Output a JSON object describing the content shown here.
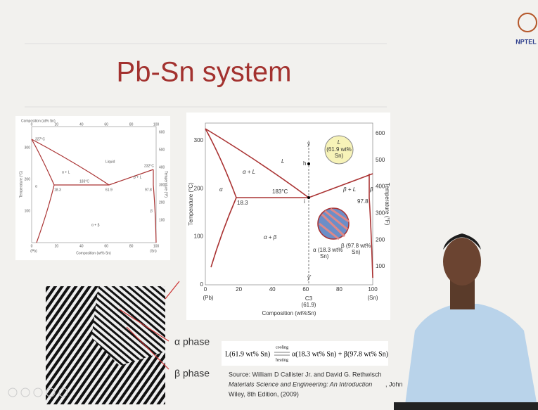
{
  "header": {
    "title": "Pb-Sn system",
    "logo": "NPTEL"
  },
  "small_diagram": {
    "top_axis_label": "Composition (at% Sn)",
    "top_ticks": [
      "0",
      "20",
      "40",
      "60",
      "80",
      "100"
    ],
    "left_ticks": [
      "300",
      "200",
      "100"
    ],
    "right_ticks": [
      "600",
      "500",
      "400",
      "300",
      "200",
      "100"
    ],
    "bottom_ticks": [
      "0",
      "20",
      "40",
      "60",
      "80",
      "100"
    ],
    "end_labels": [
      "(Pb)",
      "(Sn)"
    ],
    "x_axis_label": "Composition (wt% Sn)",
    "y_axis_label": "Temperature (°C)",
    "y2_axis_label": "Temperature (°F)",
    "labels": {
      "pb_melt": "327°C",
      "alpha_l": "α + L",
      "liquid": "Liquid",
      "sn_melt": "232°C",
      "beta_l": "β + L",
      "eutectic": "183°C",
      "alpha_comp": "18.3",
      "eut_comp": "61.9",
      "beta_comp": "97.8",
      "alpha_beta": "α + β",
      "alpha": "α",
      "beta": "β"
    }
  },
  "big_diagram": {
    "left_ticks": [
      "300",
      "200",
      "100",
      "0"
    ],
    "right_ticks": [
      "600",
      "500",
      "400",
      "300",
      "200",
      "100"
    ],
    "bottom_ticks": [
      "0",
      "20",
      "40",
      "60",
      "80",
      "100"
    ],
    "end_labels": [
      "(Pb)",
      "(Sn)"
    ],
    "x_axis_label": "Composition (wt%Sn)",
    "y_axis_label": "Temperature (°C)",
    "y2_axis_label": "Temperature (°F)",
    "labels": {
      "liquid": "L",
      "alpha_l": "α + L",
      "beta_l": "β + L",
      "alpha": "α",
      "beta": "β",
      "eutectic": "183°C",
      "alpha_comp": "18.3",
      "beta_comp": "97.8",
      "alpha_beta": "α + β",
      "y_top": "y",
      "y_bottom": "y'",
      "h": "h",
      "i": "i",
      "c3": "C3",
      "c3_val": "(61.9)"
    },
    "bubble": [
      "L",
      "(61.9 wt%",
      "Sn)"
    ],
    "alpha_note": [
      "α (18.3 wt%",
      "Sn)"
    ],
    "beta_note": [
      "β (97.8 wt%",
      "Sn)"
    ]
  },
  "micrograph": {
    "alpha_label": "α phase",
    "beta_label": "β phase"
  },
  "equation": {
    "left": "L(61.9 wt% Sn)",
    "over": "cooling",
    "under": "heating",
    "right": "α(18.3 wt% Sn) + β(97.8 wt% Sn)"
  },
  "source": {
    "line1": "Source: William D Callister Jr. and David G. Rethwisch",
    "line2": "Materials Science and Engineering: An Introduction",
    "line3": ", John",
    "line4": "Wiley, 8th Edition, (2009)"
  }
}
